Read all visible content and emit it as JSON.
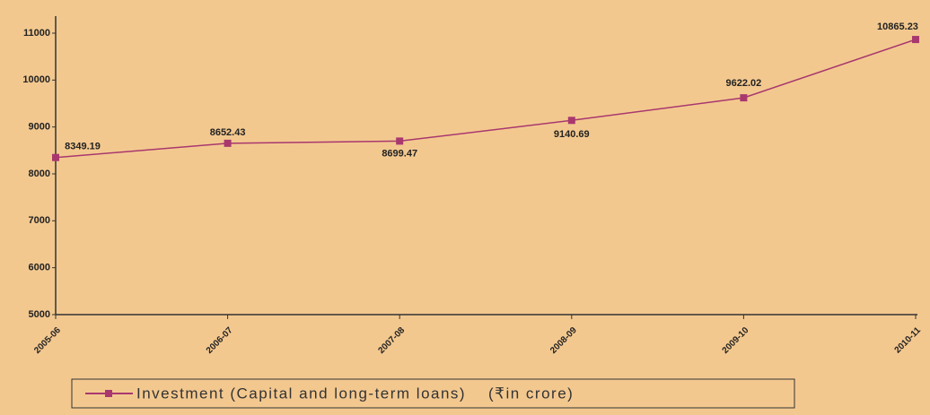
{
  "chart_data": {
    "type": "line",
    "categories": [
      "2005-06",
      "2006-07",
      "2007-08",
      "2008-09",
      "2009-10",
      "2010-11"
    ],
    "series": [
      {
        "name": "Investment (Capital and long-term loans)    (₹in crore)",
        "color": "#a8386e",
        "values": [
          8349.19,
          8652.43,
          8699.47,
          9140.69,
          9622.02,
          10865.23
        ]
      }
    ],
    "ylim": [
      5000,
      11000
    ],
    "yticks": [
      5000,
      6000,
      7000,
      8000,
      9000,
      10000,
      11000
    ],
    "grid": false,
    "legend": "bottom"
  }
}
